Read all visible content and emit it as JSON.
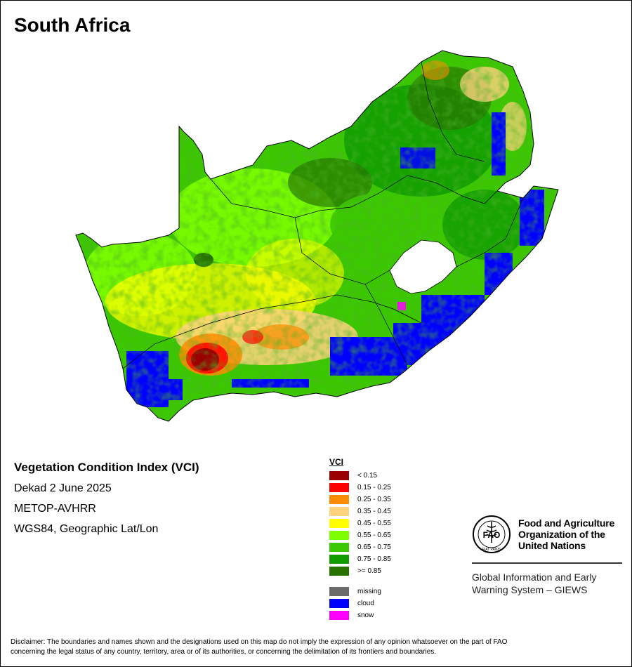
{
  "title": "South Africa",
  "info": {
    "index_name": "Vegetation Condition Index (VCI)",
    "period": "Dekad 2 June 2025",
    "sensor": "METOP-AVHRR",
    "projection": "WGS84, Geographic Lat/Lon"
  },
  "legend": {
    "title": "VCI",
    "classes": [
      {
        "label": "< 0.15",
        "color": "#9b0000"
      },
      {
        "label": "0.15 - 0.25",
        "color": "#ff0000"
      },
      {
        "label": "0.25 - 0.35",
        "color": "#ff8c00"
      },
      {
        "label": "0.35 - 0.45",
        "color": "#ffd27f"
      },
      {
        "label": "0.45 - 0.55",
        "color": "#ffff00"
      },
      {
        "label": "0.55 - 0.65",
        "color": "#7dff00"
      },
      {
        "label": "0.65 - 0.75",
        "color": "#3cc800"
      },
      {
        "label": "0.75 - 0.85",
        "color": "#119c00"
      },
      {
        "label": ">= 0.85",
        "color": "#267300"
      }
    ],
    "special": [
      {
        "label": "missing",
        "color": "#6b6b6b"
      },
      {
        "label": "cloud",
        "color": "#0000ff"
      },
      {
        "label": "snow",
        "color": "#ff00ff"
      }
    ]
  },
  "logo": {
    "name_line1": "Food and Agriculture",
    "name_line2": "Organization of the",
    "name_line3": "United Nations",
    "system_line1": "Global Information and Early",
    "system_line2": "Warning System – GIEWS",
    "emblem_text": "FAO",
    "motto": "FIAT PANIS"
  },
  "disclaimer": {
    "line1": "Disclaimer: The boundaries and names shown and the designations used on this map do not imply the expression of any opinion whatsoever on the part of FAO",
    "line2": "concerning the legal status of any country, territory, area or of its authorities, or concerning the delimitation of its frontiers and boundaries."
  }
}
